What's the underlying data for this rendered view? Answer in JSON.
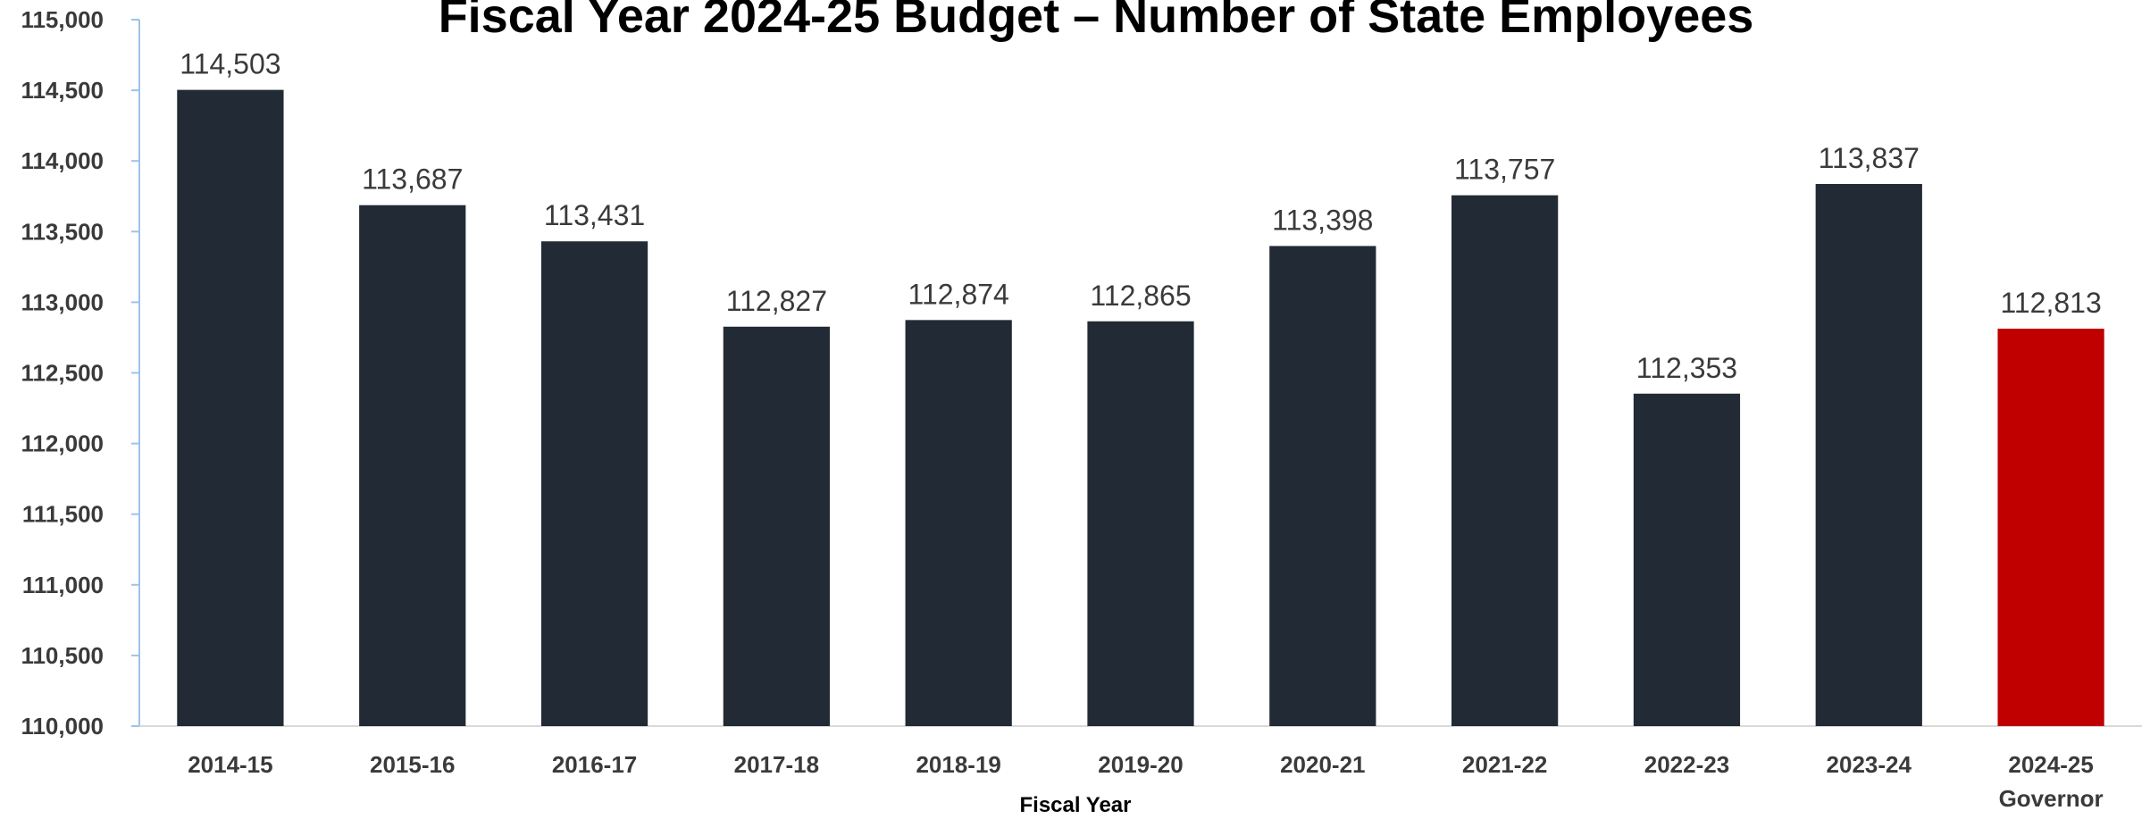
{
  "chart_data": {
    "type": "bar",
    "title": "Fiscal Year 2024-25 Budget – Number of State Employees",
    "xlabel": "Fiscal Year",
    "ylabel": "",
    "ylim": [
      110000,
      115000
    ],
    "y_ticks": [
      "110,000",
      "110,500",
      "111,000",
      "111,500",
      "112,000",
      "112,500",
      "113,000",
      "113,500",
      "114,000",
      "114,500",
      "115,000"
    ],
    "y_tick_values": [
      110000,
      110500,
      111000,
      111500,
      112000,
      112500,
      113000,
      113500,
      114000,
      114500,
      115000
    ],
    "categories": [
      "2014-15",
      "2015-16",
      "2016-17",
      "2017-18",
      "2018-19",
      "2019-20",
      "2020-21",
      "2021-22",
      "2022-23",
      "2023-24",
      "2024-25"
    ],
    "category_sublabels": [
      "",
      "",
      "",
      "",
      "",
      "",
      "",
      "",
      "",
      "",
      "Governor"
    ],
    "values": [
      114503,
      113687,
      113431,
      112827,
      112874,
      112865,
      113398,
      113757,
      112353,
      113837,
      112813
    ],
    "value_labels": [
      "114,503",
      "113,687",
      "113,431",
      "112,827",
      "112,874",
      "112,865",
      "113,398",
      "113,757",
      "112,353",
      "113,837",
      "112,813"
    ],
    "bar_colors": [
      "#222a35",
      "#222a35",
      "#222a35",
      "#222a35",
      "#222a35",
      "#222a35",
      "#222a35",
      "#222a35",
      "#222a35",
      "#222a35",
      "#c00000"
    ],
    "grid": false,
    "legend": "none",
    "axis_color": "#9dc3e6"
  }
}
